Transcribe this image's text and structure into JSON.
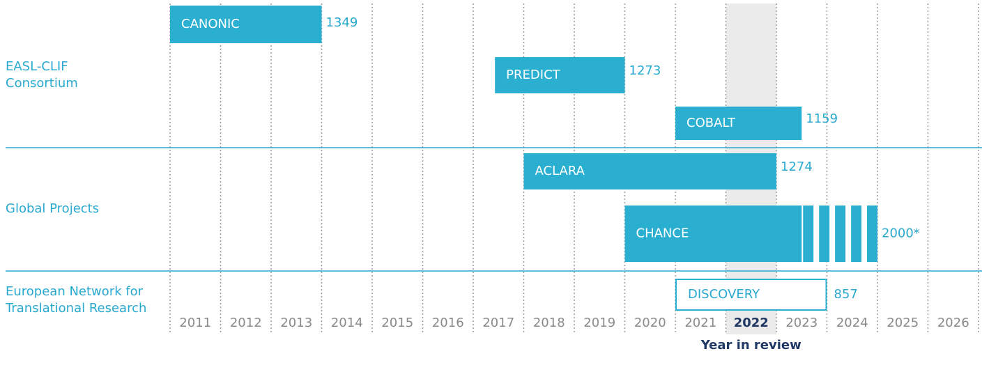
{
  "chart_data": {
    "type": "timeline",
    "xlim": [
      2011,
      2027
    ],
    "xticks": [
      2011,
      2012,
      2013,
      2014,
      2015,
      2016,
      2017,
      2018,
      2019,
      2020,
      2021,
      2022,
      2023,
      2024,
      2025,
      2026
    ],
    "highlight": 2022,
    "highlight_label": "Year in review",
    "color": "#2aafd0",
    "groups": [
      {
        "label": [
          "EASL-CLIF",
          "Consortium"
        ],
        "rows": [
          {
            "name": "CANONIC",
            "start": 2011,
            "end": 2014,
            "n": 1349
          },
          {
            "name": "PREDICT",
            "start": 2017.43,
            "end": 2020,
            "n": 1273
          },
          {
            "name": "COBALT",
            "start": 2021,
            "end": 2023.5,
            "n": 1159
          }
        ]
      },
      {
        "label": [
          "Global Projects"
        ],
        "rows": [
          {
            "name": "ACLARA",
            "start": 2018,
            "end": 2023,
            "n": 1274
          },
          {
            "name": "CHANCE",
            "start": 2020,
            "solid_end": 2023.5,
            "end": 2025,
            "n": 2000,
            "n_label": "2000*"
          }
        ]
      },
      {
        "label": [
          "European Network for",
          "Translational Research"
        ],
        "rows": [
          {
            "name": "DISCOVERY",
            "start": 2021,
            "end": 2024,
            "n": 857,
            "outline": true
          }
        ]
      }
    ]
  }
}
